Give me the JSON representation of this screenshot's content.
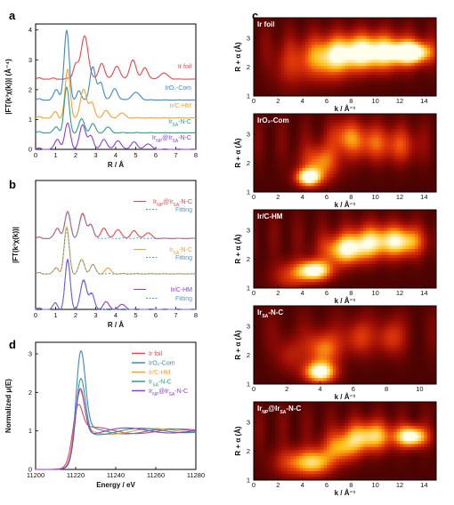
{
  "figure": {
    "panels": [
      "a",
      "b",
      "c",
      "d"
    ]
  },
  "colors": {
    "ir_foil": "#e8474b",
    "iro2": "#3d88c5",
    "irc_hm": "#f5a030",
    "ir_sa": "#2f9a8a",
    "ir_np": "#8a3fd6",
    "fitting": "#4a9ad8"
  },
  "chart_data": [
    {
      "id": "a",
      "type": "line",
      "xlabel": "R / Å",
      "ylabel": "|FT(k³χ(k))| (Å⁻⁴)",
      "xlim": [
        0,
        8
      ],
      "ylim": [
        0,
        4.2
      ],
      "xticks": [
        "0",
        "1",
        "2",
        "3",
        "4",
        "5",
        "6",
        "7",
        "8"
      ],
      "yticks": [
        "0",
        "1",
        "2",
        "3",
        "4"
      ],
      "series": [
        {
          "name": "Ir foil",
          "color": "#e8474b",
          "offset": 2.35,
          "peaks": [
            [
              2.0,
              0.5,
              0.18
            ],
            [
              2.45,
              1.45,
              0.25
            ],
            [
              3.3,
              0.55,
              0.2
            ],
            [
              4.05,
              0.45,
              0.22
            ],
            [
              4.85,
              0.65,
              0.22
            ],
            [
              5.45,
              0.4,
              0.2
            ],
            [
              6.4,
              0.2,
              0.3
            ]
          ]
        },
        {
          "name": "IrO₂-Com",
          "color": "#3d88c5",
          "offset": 1.65,
          "peaks": [
            [
              1.05,
              0.35,
              0.18
            ],
            [
              1.55,
              2.3,
              0.18
            ],
            [
              2.15,
              0.3,
              0.15
            ],
            [
              2.85,
              1.1,
              0.2
            ],
            [
              3.25,
              0.6,
              0.18
            ],
            [
              3.95,
              0.4,
              0.2
            ],
            [
              5.0,
              0.25,
              0.3
            ]
          ]
        },
        {
          "name": "Ir/C-HM",
          "color": "#f5a030",
          "offset": 1.05,
          "peaks": [
            [
              1.0,
              0.2,
              0.15
            ],
            [
              1.6,
              1.6,
              0.18
            ],
            [
              2.4,
              0.95,
              0.22
            ],
            [
              2.8,
              0.5,
              0.18
            ],
            [
              3.5,
              0.25,
              0.2
            ],
            [
              4.3,
              0.15,
              0.25
            ]
          ]
        },
        {
          "name": "Ir_SA-N-C",
          "color": "#2f9a8a",
          "offset": 0.55,
          "peaks": [
            [
              1.05,
              0.2,
              0.16
            ],
            [
              1.55,
              1.5,
              0.18
            ],
            [
              2.3,
              0.45,
              0.2
            ],
            [
              2.85,
              0.3,
              0.18
            ],
            [
              3.6,
              0.18,
              0.22
            ]
          ]
        },
        {
          "name": "Ir_NP@Ir_SA-N-C",
          "color": "#8a3fd6",
          "offset": 0.0,
          "peaks": [
            [
              1.1,
              0.35,
              0.18
            ],
            [
              1.6,
              0.85,
              0.2
            ],
            [
              2.35,
              0.8,
              0.22
            ],
            [
              2.75,
              0.45,
              0.18
            ],
            [
              3.4,
              0.35,
              0.2
            ],
            [
              4.1,
              0.3,
              0.22
            ],
            [
              4.9,
              0.25,
              0.22
            ],
            [
              5.6,
              0.18,
              0.25
            ]
          ]
        }
      ],
      "legend_labels": [
        {
          "text": "Ir foil",
          "color": "#e8474b"
        },
        {
          "text": "IrO₂-Com",
          "color": "#3d88c5"
        },
        {
          "text": "Ir/C-HM",
          "color": "#f5a030"
        },
        {
          "text": "Ir",
          "sub": "SA",
          "tail": "-N-C",
          "color": "#2f9a8a"
        },
        {
          "text": "Ir",
          "sub": "NP",
          "tail": "@Ir",
          "sub2": "SA",
          "tail2": "-N-C",
          "color": "#8a3fd6"
        }
      ]
    },
    {
      "id": "b",
      "type": "line",
      "xlabel": "R / Å",
      "ylabel": "|FT(k³χ(k))|",
      "xlim": [
        0,
        8
      ],
      "xticks": [
        "0",
        "1",
        "2",
        "3",
        "4",
        "5",
        "6",
        "7",
        "8"
      ],
      "groups": [
        {
          "name": "Ir_NP@Ir_SA-N-C",
          "color": "#e8474b",
          "offset": 2.2,
          "peaks": [
            [
              1.1,
              0.35,
              0.18
            ],
            [
              1.6,
              0.85,
              0.2
            ],
            [
              2.35,
              0.8,
              0.22
            ],
            [
              2.75,
              0.45,
              0.18
            ],
            [
              3.4,
              0.35,
              0.2
            ],
            [
              4.1,
              0.3,
              0.22
            ],
            [
              4.9,
              0.25,
              0.22
            ],
            [
              5.6,
              0.18,
              0.25
            ]
          ]
        },
        {
          "name": "Ir_SA-N-C",
          "color": "#f5a030",
          "offset": 1.1,
          "peaks": [
            [
              1.05,
              0.2,
              0.16
            ],
            [
              1.55,
              1.5,
              0.18
            ],
            [
              2.3,
              0.45,
              0.2
            ],
            [
              2.85,
              0.3,
              0.18
            ],
            [
              3.6,
              0.18,
              0.22
            ]
          ]
        },
        {
          "name": "Ir/C-HM",
          "color": "#8a3fd6",
          "offset": 0.0,
          "peaks": [
            [
              1.0,
              0.2,
              0.15
            ],
            [
              1.6,
              1.6,
              0.18
            ],
            [
              2.4,
              0.95,
              0.22
            ],
            [
              2.8,
              0.5,
              0.18
            ],
            [
              3.5,
              0.25,
              0.2
            ],
            [
              4.3,
              0.15,
              0.25
            ]
          ]
        }
      ],
      "fitting_label": "Fitting",
      "fitting_color": "#4a9ad8",
      "legend_labels": [
        {
          "text": "Ir",
          "sub": "NP",
          "tail": "@Ir",
          "sub2": "SA",
          "tail2": "-N-C",
          "color": "#e8474b"
        },
        {
          "text": "Fitting",
          "color": "#4a9ad8"
        },
        {
          "text": "Ir",
          "sub": "SA",
          "tail": "-N-C",
          "color": "#f5a030"
        },
        {
          "text": "Fitting",
          "color": "#4a9ad8"
        },
        {
          "text": "Ir/C-HM",
          "color": "#8a3fd6"
        },
        {
          "text": "Fitting",
          "color": "#4a9ad8"
        }
      ]
    },
    {
      "id": "d",
      "type": "line",
      "xlabel": "Energy / eV",
      "ylabel": "Normalized μ(E)",
      "xlim": [
        11200,
        11280
      ],
      "ylim": [
        0,
        3.3
      ],
      "xticks": [
        "11200",
        "11220",
        "11240",
        "11260",
        "11280"
      ],
      "yticks": [
        "0",
        "1",
        "2",
        "3"
      ],
      "series": [
        {
          "name": "Ir foil",
          "color": "#e8474b",
          "edge": 11218,
          "wl": 1.75
        },
        {
          "name": "IrO₂-Com",
          "color": "#3d88c5",
          "edge": 11219.5,
          "wl": 3.1
        },
        {
          "name": "Ir/C-HM",
          "color": "#f5a030",
          "edge": 11219,
          "wl": 2.1
        },
        {
          "name": "Ir_SA-N-C",
          "color": "#2f9a8a",
          "edge": 11219.5,
          "wl": 2.5
        },
        {
          "name": "Ir_NP@Ir_SA-N-C",
          "color": "#8a3fd6",
          "edge": 11219.2,
          "wl": 2.3
        }
      ],
      "legend_labels": [
        {
          "text": "Ir foil",
          "color": "#e8474b"
        },
        {
          "text": "IrO₂-Com",
          "color": "#3d88c5"
        },
        {
          "text": "Ir/C-HM",
          "color": "#f5a030"
        },
        {
          "text": "Ir",
          "sub": "SA",
          "tail": "-N-C",
          "color": "#2f9a8a"
        },
        {
          "text": "Ir",
          "sub": "NP",
          "tail": "@Ir",
          "sub2": "SA",
          "tail2": "-N-C",
          "color": "#8a3fd6"
        }
      ]
    },
    {
      "id": "c",
      "type": "heatmap",
      "xlabel": "k / Å⁻¹",
      "ylabel": "R + α (Å)",
      "maps": [
        {
          "title": "Ir foil",
          "xlim": [
            0,
            15
          ],
          "xticks": [
            "0",
            "2",
            "4",
            "6",
            "8",
            "10",
            "12",
            "14"
          ],
          "ylim": [
            1,
            3.7
          ],
          "yticks": [
            "1",
            "2",
            "3"
          ],
          "blobs": [
            [
              9.5,
              2.5,
              3.5,
              0.6,
              1.0
            ],
            [
              13,
              2.5,
              1.5,
              0.35,
              0.95
            ],
            [
              6,
              2.2,
              2,
              0.7,
              0.5
            ],
            [
              3,
              2.0,
              1.5,
              0.8,
              0.25
            ]
          ]
        },
        {
          "title": "IrO₂-Com",
          "xlim": [
            0,
            15
          ],
          "xticks": [
            "0",
            "2",
            "4",
            "6",
            "8",
            "10",
            "12",
            "14"
          ],
          "ylim": [
            1,
            3.7
          ],
          "yticks": [
            "1",
            "2",
            "3"
          ],
          "blobs": [
            [
              4.5,
              1.5,
              1.0,
              0.3,
              1.0
            ],
            [
              5.5,
              2.0,
              1.5,
              0.6,
              0.55
            ],
            [
              7.5,
              2.9,
              1.2,
              0.6,
              0.45
            ],
            [
              9.5,
              2.7,
              1.5,
              0.6,
              0.4
            ],
            [
              12,
              2.6,
              1.5,
              0.6,
              0.35
            ]
          ]
        },
        {
          "title": "Ir/C-HM",
          "xlim": [
            0,
            15
          ],
          "xticks": [
            "0",
            "2",
            "4",
            "6",
            "8",
            "10",
            "12",
            "14"
          ],
          "ylim": [
            1,
            3.7
          ],
          "yticks": [
            "1",
            "2",
            "3"
          ],
          "blobs": [
            [
              5.0,
              1.6,
              1.4,
              0.35,
              1.0
            ],
            [
              7.5,
              2.3,
              1.8,
              0.5,
              0.75
            ],
            [
              10,
              2.6,
              2.2,
              0.55,
              0.7
            ],
            [
              12.5,
              2.6,
              1.5,
              0.5,
              0.6
            ],
            [
              3,
              1.4,
              1.5,
              0.5,
              0.35
            ]
          ]
        },
        {
          "title": "Ir_SA-N-C",
          "xlim": [
            0,
            11
          ],
          "xticks": [
            "0",
            "2",
            "4",
            "6",
            "8",
            "10"
          ],
          "ylim": [
            1,
            3.7
          ],
          "yticks": [
            "1",
            "2",
            "3"
          ],
          "blobs": [
            [
              4.0,
              1.4,
              0.9,
              0.35,
              1.0
            ],
            [
              4.2,
              2.2,
              1.0,
              0.6,
              0.55
            ],
            [
              6.3,
              2.6,
              0.8,
              0.6,
              0.35
            ],
            [
              8.2,
              2.6,
              0.8,
              0.6,
              0.35
            ],
            [
              2.2,
              2.0,
              0.8,
              0.6,
              0.25
            ]
          ]
        },
        {
          "title": "Ir_NP@Ir_SA-N-C",
          "xlim": [
            0,
            15
          ],
          "xticks": [
            "0",
            "2",
            "4",
            "6",
            "8",
            "10",
            "12",
            "14"
          ],
          "ylim": [
            1,
            3.7
          ],
          "yticks": [
            "1",
            "2",
            "3"
          ],
          "blobs": [
            [
              13,
              2.5,
              1.2,
              0.35,
              1.0
            ],
            [
              9.5,
              2.5,
              2.0,
              0.5,
              0.75
            ],
            [
              5.0,
              1.6,
              1.5,
              0.45,
              0.7
            ],
            [
              7.2,
              2.1,
              1.5,
              0.5,
              0.55
            ],
            [
              3,
              1.6,
              1.5,
              0.5,
              0.35
            ]
          ]
        }
      ]
    }
  ]
}
